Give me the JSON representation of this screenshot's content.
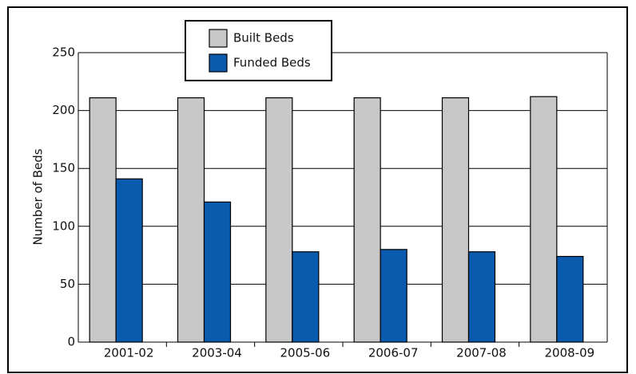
{
  "chart_data": {
    "type": "bar",
    "y_label": "Number of Beds",
    "categories": [
      "2001-02",
      "2003-04",
      "2005-06",
      "2006-07",
      "2007-08",
      "2008-09"
    ],
    "series": [
      {
        "name": "Built Beds",
        "color": "#c8c8c8",
        "values": [
          211,
          211,
          211,
          211,
          211,
          212
        ]
      },
      {
        "name": "Funded Beds",
        "color": "#0a5aad",
        "values": [
          141,
          121,
          78,
          80,
          78,
          74
        ]
      }
    ],
    "ylim": [
      0,
      250
    ],
    "yticks": [
      0,
      50,
      100,
      150,
      200,
      250
    ],
    "grid": true
  }
}
